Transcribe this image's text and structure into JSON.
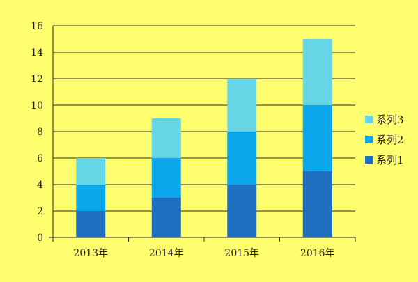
{
  "page": {
    "background": "#fffe6e"
  },
  "chart_data": {
    "type": "bar",
    "stacked": true,
    "title": "",
    "xlabel": "",
    "ylabel": "",
    "categories": [
      "2013年",
      "2014年",
      "2015年",
      "2016年"
    ],
    "series": [
      {
        "name": "系列1",
        "values": [
          2,
          3,
          4,
          5
        ],
        "color": "#1f6fc0"
      },
      {
        "name": "系列2",
        "values": [
          2,
          3,
          4,
          5
        ],
        "color": "#0aa5ea"
      },
      {
        "name": "系列3",
        "values": [
          2,
          3,
          4,
          5
        ],
        "color": "#66d6e6"
      }
    ],
    "ylim": [
      0,
      16
    ],
    "yticks": [
      0,
      2,
      4,
      6,
      8,
      10,
      12,
      14,
      16
    ],
    "grid": true,
    "legend": {
      "position": "right",
      "order": "reversed"
    }
  }
}
